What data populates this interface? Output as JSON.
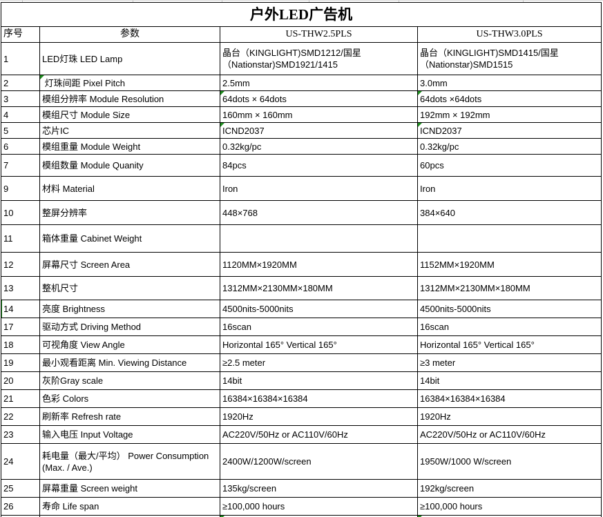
{
  "title": "户外LED广告机",
  "columns": [
    "序号",
    "参数",
    "US-THW2.5PLS",
    "US-THW3.0PLS"
  ],
  "rows": [
    {
      "no": "1",
      "param": "LED灯珠 LED Lamp",
      "v1": "晶台（KINGLIGHT)SMD1212/国星\n（Nationstar)SMD1921/1415",
      "v2": "晶台（KINGLIGHT)SMD1415/国星\n（Nationstar)SMD1515"
    },
    {
      "no": "2",
      "param": " 灯珠间距 Pixel Pitch",
      "v1": "2.5mm",
      "v2": "3.0mm",
      "flag_param": true
    },
    {
      "no": "3",
      "param": "模组分辨率 Module Resolution",
      "v1": "64dots × 64dots",
      "v2": "64dots ×64dots",
      "flag_v1": true,
      "flag_v2": true
    },
    {
      "no": "4",
      "param": "模组尺寸 Module Size",
      "v1": "160mm × 160mm",
      "v2": "192mm × 192mm"
    },
    {
      "no": "5",
      "param": "芯片IC",
      "v1": "ICND2037",
      "v2": "ICND2037",
      "flag_v1": true,
      "flag_v2": true
    },
    {
      "no": "6",
      "param": "模组重量 Module Weight",
      "v1": "0.32kg/pc",
      "v2": "0.32kg/pc"
    },
    {
      "no": "7",
      "param": "模组数量 Module Quanity",
      "v1": "84pcs",
      "v2": "60pcs"
    },
    {
      "no": "9",
      "param": "材料 Material",
      "v1": "Iron",
      "v2": "Iron"
    },
    {
      "no": "10",
      "param": "整屏分辨率",
      "v1": "448×768",
      "v2": "384×640"
    },
    {
      "no": "11",
      "param": "箱体重量 Cabinet Weight",
      "v1": "",
      "v2": ""
    },
    {
      "no": "12",
      "param": "屏幕尺寸 Screen Area",
      "v1": "1120MM×1920MM",
      "v2": "1152MM×1920MM"
    },
    {
      "no": "13",
      "param": "整机尺寸",
      "v1": "1312MM×2130MM×180MM",
      "v2": "1312MM×2130MM×180MM"
    },
    {
      "no": "14",
      "param": "亮度 Brightness",
      "v1": "4500nits-5000nits",
      "v2": "4500nits-5000nits",
      "green_bar": true
    },
    {
      "no": "17",
      "param": "驱动方式 Driving Method",
      "v1": "16scan",
      "v2": "16scan"
    },
    {
      "no": "18",
      "param": "可视角度 View Angle",
      "v1": "Horizontal 165° Vertical 165°",
      "v2": "Horizontal 165° Vertical 165°"
    },
    {
      "no": "19",
      "param": "最小观看距离 Min. Viewing Distance",
      "v1": "≥2.5 meter",
      "v2": "≥3 meter"
    },
    {
      "no": "20",
      "param": "灰阶Gray scale",
      "v1": "14bit",
      "v2": "14bit"
    },
    {
      "no": "21",
      "param": "色彩 Colors",
      "v1": "16384×16384×16384",
      "v2": "16384×16384×16384"
    },
    {
      "no": "22",
      "param": "刷新率 Refresh rate",
      "v1": "1920Hz",
      "v2": "1920Hz"
    },
    {
      "no": "23",
      "param": "输入电压 Input Voltage",
      "v1": "AC220V/50Hz or AC110V/60Hz",
      "v2": "AC220V/50Hz or AC110V/60Hz"
    },
    {
      "no": "24",
      "param": "耗电量（最大/平均） Power Consumption\n(Max. / Ave.)",
      "v1": "2400W/1200W/screen",
      "v2": "1950W/1000 W/screen"
    },
    {
      "no": "25",
      "param": "屏幕重量 Screen weight",
      "v1": "135kg/screen",
      "v2": "192kg/screen"
    },
    {
      "no": "26",
      "param": "寿命 Life span",
      "v1": "≥100,000 hours",
      "v2": "≥100,000 hours"
    }
  ],
  "colors": {
    "border": "#000000",
    "grid_line": "#c9c9c9",
    "flag_green": "#1e8e1e",
    "background": "#ffffff",
    "text": "#000000"
  }
}
